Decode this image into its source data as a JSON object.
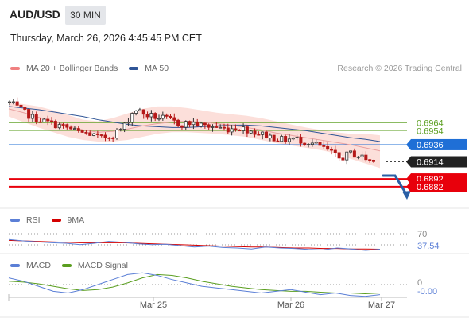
{
  "header": {
    "symbol": "AUD/USD",
    "timeframe": "30 MIN",
    "datetime": "Thursday, March 26, 2026 4:45:45 PM CET"
  },
  "legends": {
    "main": [
      {
        "label": "MA 20 + Bollinger Bands",
        "color": "#f08080"
      },
      {
        "label": "MA 50",
        "color": "#2f5597"
      }
    ],
    "rsi": [
      {
        "label": "RSI",
        "color": "#5b7fd6"
      },
      {
        "label": "9MA",
        "color": "#d40000"
      }
    ],
    "macd": [
      {
        "label": "MACD",
        "color": "#5b7fd6"
      },
      {
        "label": "MACD Signal",
        "color": "#5a9e1f"
      }
    ]
  },
  "copyright": "Research © 2026 Trading Central",
  "chart_data": [
    {
      "type": "candlestick",
      "title": "AUD/USD 30 MIN",
      "ylim": [
        0.687,
        0.6995
      ],
      "x_ticks": [
        "Mar 25",
        "Mar 26",
        "Mar 27"
      ],
      "levels": [
        {
          "value": 0.6964,
          "label": "0.6964",
          "color": "#5a9e1f",
          "kind": "resistance"
        },
        {
          "value": 0.6954,
          "label": "0.6954",
          "color": "#5a9e1f",
          "kind": "resistance"
        },
        {
          "value": 0.6936,
          "label": "0.6936",
          "color": "#1f6fd6",
          "kind": "pivot"
        },
        {
          "value": 0.6914,
          "label": "0.6914",
          "color": "#222222",
          "kind": "last price"
        },
        {
          "value": 0.6892,
          "label": "0.6892",
          "color": "#e8000b",
          "kind": "support"
        },
        {
          "value": 0.6882,
          "label": "0.6882",
          "color": "#e8000b",
          "kind": "support"
        }
      ],
      "ma50": [
        0.6985,
        0.6983,
        0.6981,
        0.6978,
        0.6975,
        0.6972,
        0.6968,
        0.6965,
        0.6962,
        0.696,
        0.6959,
        0.6958,
        0.6958,
        0.6959,
        0.696,
        0.6961,
        0.6961,
        0.696,
        0.6958,
        0.6956,
        0.6954,
        0.6951,
        0.6948,
        0.6945,
        0.6943,
        0.694
      ],
      "ma20": [
        0.6982,
        0.6977,
        0.6971,
        0.6966,
        0.696,
        0.6955,
        0.6952,
        0.6953,
        0.6956,
        0.696,
        0.6963,
        0.6965,
        0.6966,
        0.6965,
        0.6963,
        0.6961,
        0.6958,
        0.6955,
        0.6951,
        0.6948,
        0.6945,
        0.6942,
        0.6939,
        0.6936,
        0.6932,
        0.6928
      ],
      "bb_upper": [
        0.699,
        0.6988,
        0.6985,
        0.698,
        0.6974,
        0.6968,
        0.6966,
        0.697,
        0.6976,
        0.6982,
        0.6985,
        0.6985,
        0.6983,
        0.698,
        0.6977,
        0.6975,
        0.6973,
        0.697,
        0.6966,
        0.6962,
        0.6958,
        0.6955,
        0.6952,
        0.695,
        0.695,
        0.6948
      ],
      "bb_lower": [
        0.6972,
        0.6965,
        0.6958,
        0.6952,
        0.6946,
        0.6942,
        0.694,
        0.694,
        0.6942,
        0.6946,
        0.695,
        0.6952,
        0.6952,
        0.6951,
        0.695,
        0.6948,
        0.6946,
        0.6942,
        0.6938,
        0.6935,
        0.6932,
        0.6929,
        0.6925,
        0.6918,
        0.6912,
        0.6906
      ],
      "close_path": [
        0.699,
        0.698,
        0.6971,
        0.6966,
        0.6962,
        0.6958,
        0.6952,
        0.695,
        0.6944,
        0.6948,
        0.6958,
        0.6982,
        0.6974,
        0.6971,
        0.6968,
        0.6962,
        0.6964,
        0.696,
        0.6959,
        0.6956,
        0.6958,
        0.6955,
        0.695,
        0.6946,
        0.6942,
        0.6944,
        0.694,
        0.6936,
        0.6928,
        0.6918,
        0.6925,
        0.692,
        0.6914
      ]
    },
    {
      "type": "line",
      "title": "RSI",
      "series": [
        {
          "name": "RSI",
          "values": [
            58,
            55,
            53,
            51,
            50,
            47,
            50,
            54,
            52,
            49,
            47,
            48,
            45,
            42,
            44,
            41,
            40,
            38,
            42,
            40,
            39,
            37,
            36,
            40,
            38,
            35,
            37.54
          ]
        },
        {
          "name": "9MA",
          "values": [
            56,
            55,
            54,
            53,
            52,
            51,
            51,
            51,
            51,
            50,
            49,
            48,
            47,
            46,
            45,
            44,
            43,
            42,
            42,
            41,
            40,
            40,
            39,
            39,
            38,
            38,
            37.5
          ]
        }
      ],
      "level_labels": [
        "70",
        "37.54"
      ]
    },
    {
      "type": "line",
      "title": "MACD",
      "series": [
        {
          "name": "MACD",
          "values": [
            0.0008,
            0.0004,
            -0.0002,
            -0.0008,
            -0.001,
            -0.0006,
            0.0,
            0.0006,
            0.0012,
            0.0014,
            0.0011,
            0.0006,
            0.0002,
            -0.0002,
            -0.0004,
            -0.0006,
            -0.0008,
            -0.001,
            -0.0008,
            -0.0006,
            -0.0009,
            -0.0012,
            -0.001,
            -0.0013,
            -0.0014,
            -0.0012
          ]
        },
        {
          "name": "MACD Signal",
          "values": [
            0.0004,
            0.0003,
            0.0001,
            -0.0002,
            -0.0005,
            -0.0007,
            -0.0006,
            -0.0003,
            0.0002,
            0.0008,
            0.0012,
            0.0011,
            0.0008,
            0.0004,
            0.0001,
            -0.0002,
            -0.0004,
            -0.0006,
            -0.0007,
            -0.0008,
            -0.0008,
            -0.0009,
            -0.001,
            -0.001,
            -0.0011,
            -0.001
          ]
        }
      ],
      "level_labels": [
        "0",
        "-0.00"
      ]
    }
  ]
}
